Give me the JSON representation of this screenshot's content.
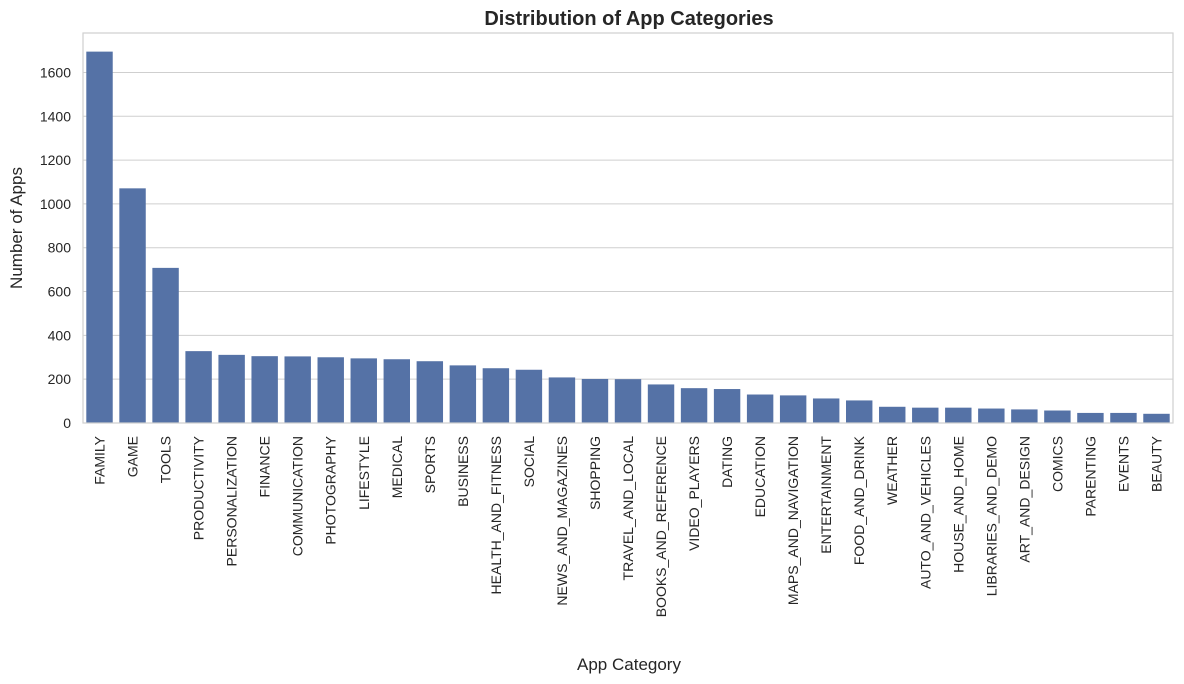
{
  "colors": {
    "bar": "#5572a6",
    "grid": "#cfcfcf",
    "text": "#262626"
  },
  "chart_data": {
    "type": "bar",
    "title": "Distribution of App Categories",
    "xlabel": "App Category",
    "ylabel": "Number of Apps",
    "ylim": [
      0,
      1780
    ],
    "yticks": [
      0,
      200,
      400,
      600,
      800,
      1000,
      1200,
      1400,
      1600
    ],
    "grid": true,
    "categories": [
      "FAMILY",
      "GAME",
      "TOOLS",
      "PRODUCTIVITY",
      "PERSONALIZATION",
      "FINANCE",
      "COMMUNICATION",
      "PHOTOGRAPHY",
      "LIFESTYLE",
      "MEDICAL",
      "SPORTS",
      "BUSINESS",
      "HEALTH_AND_FITNESS",
      "SOCIAL",
      "NEWS_AND_MAGAZINES",
      "SHOPPING",
      "TRAVEL_AND_LOCAL",
      "BOOKS_AND_REFERENCE",
      "VIDEO_PLAYERS",
      "DATING",
      "EDUCATION",
      "MAPS_AND_NAVIGATION",
      "ENTERTAINMENT",
      "FOOD_AND_DRINK",
      "WEATHER",
      "AUTO_AND_VEHICLES",
      "HOUSE_AND_HOME",
      "LIBRARIES_AND_DEMO",
      "ART_AND_DESIGN",
      "COMICS",
      "PARENTING",
      "EVENTS",
      "BEAUTY"
    ],
    "values": [
      1695,
      1071,
      708,
      328,
      311,
      305,
      304,
      300,
      295,
      291,
      282,
      263,
      250,
      243,
      208,
      201,
      200,
      176,
      159,
      155,
      130,
      126,
      112,
      103,
      74,
      70,
      70,
      66,
      62,
      57,
      46,
      46,
      42
    ]
  }
}
